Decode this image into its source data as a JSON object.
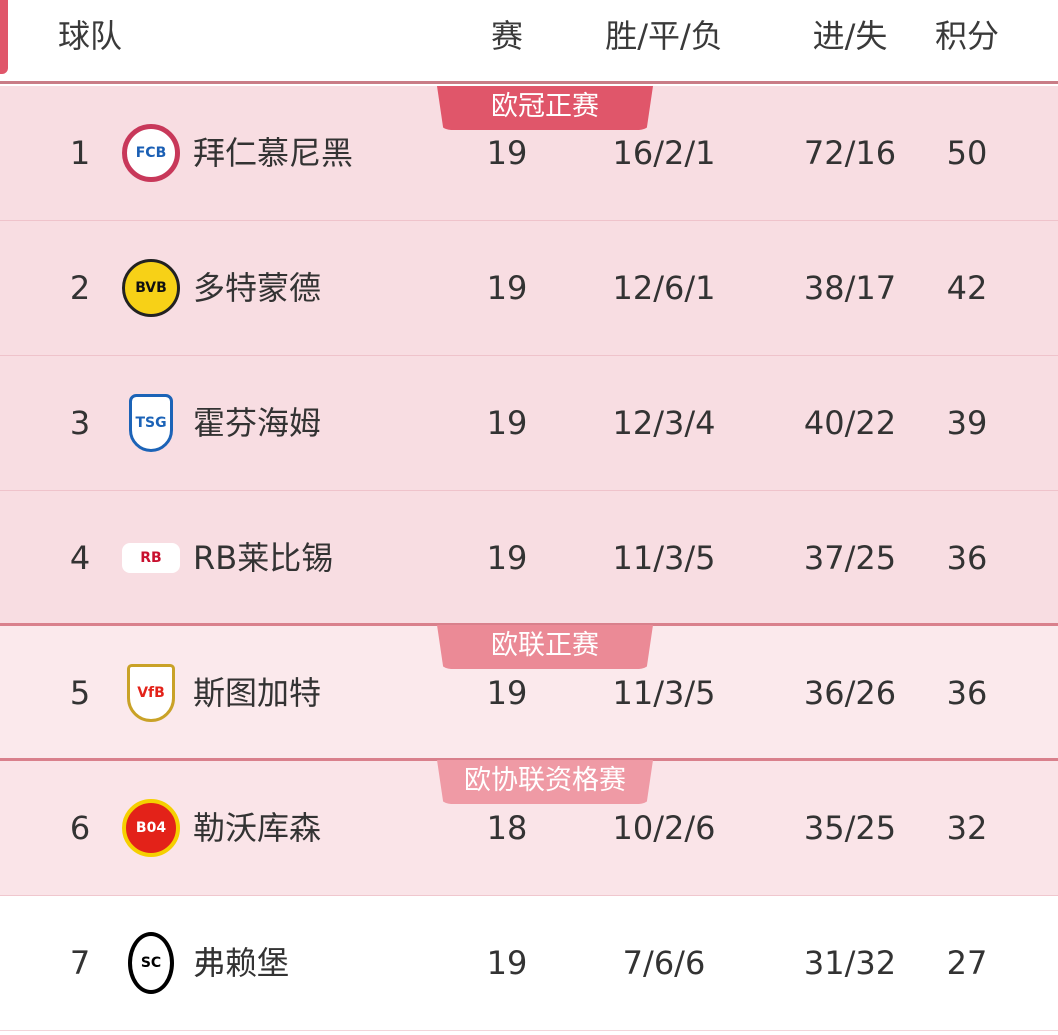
{
  "header": {
    "team": "球队",
    "played": "赛",
    "wdl": "胜/平/负",
    "goals": "进/失",
    "points": "积分"
  },
  "zones": [
    {
      "label": "欧冠正赛",
      "row_bg": "#f8dde2",
      "tag_color": "#e0566a"
    },
    {
      "label": "欧联正赛",
      "row_bg": "#fbe9ec",
      "tag_color": "#eb8a96"
    },
    {
      "label": "欧协联资格赛",
      "row_bg": "#fae4e8",
      "tag_color": "#ef9aa5"
    }
  ],
  "rows": [
    {
      "rank": "1",
      "team": "拜仁慕尼黑",
      "logo": "bayern-logo",
      "played": "19",
      "wdl": "16/2/1",
      "goals": "72/16",
      "points": "50"
    },
    {
      "rank": "2",
      "team": "多特蒙德",
      "logo": "dortmund-logo",
      "played": "19",
      "wdl": "12/6/1",
      "goals": "38/17",
      "points": "42"
    },
    {
      "rank": "3",
      "team": "霍芬海姆",
      "logo": "hoffenheim-logo",
      "played": "19",
      "wdl": "12/3/4",
      "goals": "40/22",
      "points": "39"
    },
    {
      "rank": "4",
      "team": "RB莱比锡",
      "logo": "leipzig-logo",
      "played": "19",
      "wdl": "11/3/5",
      "goals": "37/25",
      "points": "36"
    },
    {
      "rank": "5",
      "team": "斯图加特",
      "logo": "stuttgart-logo",
      "played": "19",
      "wdl": "11/3/5",
      "goals": "36/26",
      "points": "36"
    },
    {
      "rank": "6",
      "team": "勒沃库森",
      "logo": "leverkusen-logo",
      "played": "18",
      "wdl": "10/2/6",
      "goals": "35/25",
      "points": "32"
    },
    {
      "rank": "7",
      "team": "弗赖堡",
      "logo": "freiburg-logo",
      "played": "19",
      "wdl": "7/6/6",
      "goals": "31/32",
      "points": "27"
    }
  ]
}
